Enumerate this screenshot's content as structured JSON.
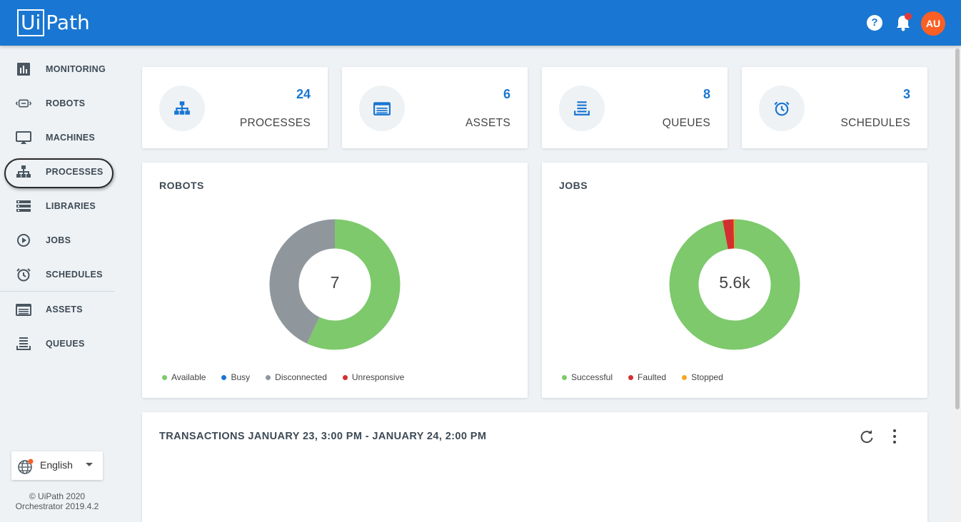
{
  "header": {
    "logo_box": "Ui",
    "logo_rest": "Path",
    "help_glyph": "?",
    "avatar_initials": "AU",
    "accent": "#1976d2"
  },
  "sidebar": {
    "items": [
      {
        "label": "MONITORING",
        "icon": "bar-chart-icon"
      },
      {
        "label": "ROBOTS",
        "icon": "robot-icon"
      },
      {
        "label": "MACHINES",
        "icon": "monitor-icon"
      },
      {
        "label": "PROCESSES",
        "icon": "hierarchy-icon",
        "selected": true
      },
      {
        "label": "LIBRARIES",
        "icon": "list-icon"
      },
      {
        "label": "JOBS",
        "icon": "play-circle-icon"
      },
      {
        "label": "SCHEDULES",
        "icon": "alarm-clock-icon"
      },
      {
        "label": "ASSETS",
        "icon": "asset-list-icon"
      },
      {
        "label": "QUEUES",
        "icon": "queue-stack-icon"
      }
    ],
    "language": "English",
    "footer_line1": "© UiPath 2020",
    "footer_line2": "Orchestrator 2019.4.2"
  },
  "stats": [
    {
      "value": "24",
      "label": "PROCESSES",
      "icon": "hierarchy-icon"
    },
    {
      "value": "6",
      "label": "ASSETS",
      "icon": "asset-list-icon"
    },
    {
      "value": "8",
      "label": "QUEUES",
      "icon": "queue-stack-icon"
    },
    {
      "value": "3",
      "label": "SCHEDULES",
      "icon": "alarm-clock-icon"
    }
  ],
  "robots_panel": {
    "title": "ROBOTS",
    "center": "7",
    "legend": [
      {
        "label": "Available",
        "color": "#7dc96c"
      },
      {
        "label": "Busy",
        "color": "#1976d2"
      },
      {
        "label": "Disconnected",
        "color": "#8f979c"
      },
      {
        "label": "Unresponsive",
        "color": "#d32f2f"
      }
    ],
    "segments": [
      {
        "name": "Available",
        "fraction": 0.57,
        "color": "#7dc96c"
      },
      {
        "name": "Disconnected",
        "fraction": 0.43,
        "color": "#8f979c"
      }
    ]
  },
  "jobs_panel": {
    "title": "JOBS",
    "center": "5.6k",
    "legend": [
      {
        "label": "Successful",
        "color": "#7dc96c"
      },
      {
        "label": "Faulted",
        "color": "#d32f2f"
      },
      {
        "label": "Stopped",
        "color": "#f5a623"
      }
    ],
    "segments": [
      {
        "name": "Successful",
        "fraction": 0.97,
        "color": "#7dc96c"
      },
      {
        "name": "Faulted",
        "fraction": 0.027,
        "color": "#d32f2f"
      },
      {
        "name": "Stopped",
        "fraction": 0.003,
        "color": "#f5a623"
      }
    ]
  },
  "transactions": {
    "title": "TRANSACTIONS JANUARY 23, 3:00 PM - JANUARY 24, 2:00 PM"
  }
}
